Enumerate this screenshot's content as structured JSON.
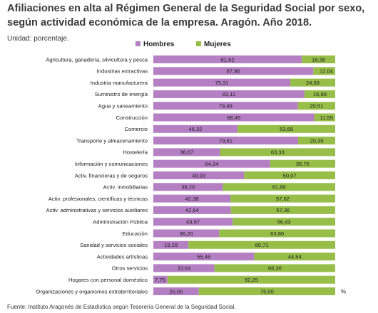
{
  "title": "Afiliaciones en alta al Régimen General de la Seguridad Social por sexo, según actividad económica de la empresa. Aragón. Año 2018.",
  "unit": "Unidad: porcentaje.",
  "source": "Fuente: Instituto Aragonés de Estadística según Tesorería General de la Seguridad Social.",
  "colors": {
    "hombres": "#b57fc4",
    "mujeres": "#97be49"
  },
  "chart_data": {
    "type": "bar",
    "orientation": "horizontal",
    "stacked": true,
    "xlabel": "%",
    "ylabel": "",
    "xlim": [
      0,
      100
    ],
    "legend": "top",
    "grid": false,
    "categories": [
      "Agricultura, ganadería, silvicultura y pesca",
      "Industrias extractivas",
      "Industria manufacturera",
      "Suministro de energía",
      "Agua y saneamiento",
      "Construcción",
      "Comercio",
      "Transporte y almacenamiento",
      "Hostelería",
      "Información y comunicaciones",
      "Activ. financieras y de seguros",
      "Activ. inmobiliarias",
      "Activ. profesionales, científicas y técnicas",
      "Activ. administrativas y servicios auxiliares",
      "Administración Pública",
      "Educación",
      "Sanidad y servicios sociales",
      "Actividades artísticas",
      "Otros servicios",
      "Hogares con personal doméstico",
      "Organizaciones y organismos extraterritoriales"
    ],
    "series": [
      {
        "name": "Hombres",
        "values": [
          81.62,
          87.96,
          75.31,
          83.11,
          79.49,
          88.45,
          46.32,
          79.61,
          36.67,
          64.24,
          49.93,
          38.2,
          42.38,
          42.64,
          43.57,
          36.2,
          19.29,
          55.46,
          33.64,
          7.75,
          25.0
        ],
        "labels": [
          "81,62",
          "87,96",
          "75,31",
          "83,11",
          "79,49",
          "88,45",
          "46,32",
          "79,61",
          "36,67",
          "64,24",
          "49,93",
          "38,20",
          "42,38",
          "42,64",
          "43,57",
          "36,20",
          "19,29",
          "55,46",
          "33,64",
          "7,75",
          "25,00"
        ]
      },
      {
        "name": "Mujeres",
        "values": [
          18.38,
          12.04,
          24.69,
          16.89,
          20.51,
          11.55,
          53.68,
          20.39,
          63.33,
          35.76,
          50.07,
          61.8,
          57.62,
          57.36,
          56.43,
          63.8,
          80.71,
          44.54,
          66.36,
          92.25,
          75.0
        ],
        "labels": [
          "18,38",
          "12,04",
          "24,69",
          "16,89",
          "20,51",
          "11,55",
          "53,68",
          "20,39",
          "63,33",
          "35,76",
          "50,07",
          "61,80",
          "57,62",
          "57,36",
          "56,43",
          "63,80",
          "80,71",
          "44,54",
          "66,36",
          "92,25",
          "75,00"
        ]
      }
    ]
  }
}
